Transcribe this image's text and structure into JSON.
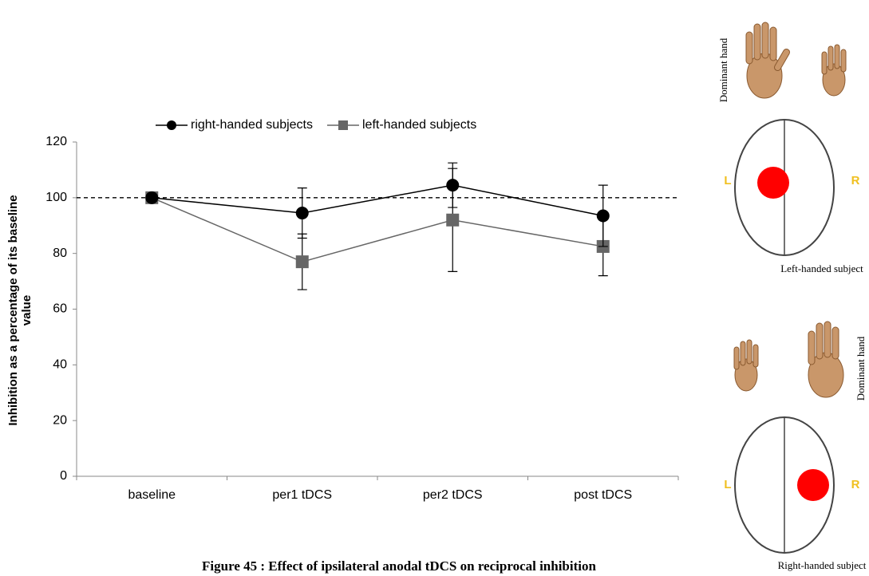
{
  "chart_data": {
    "type": "line",
    "categories": [
      "baseline",
      "per1 tDCS",
      "per2 tDCS",
      "post tDCS"
    ],
    "series": [
      {
        "name": "right-handed subjects",
        "color": "#000000",
        "marker": "circle",
        "values": [
          100,
          94.5,
          104.5,
          93.5
        ],
        "errors": [
          0,
          9,
          8,
          11
        ]
      },
      {
        "name": "left-handed subjects",
        "color": "#666666",
        "marker": "square",
        "values": [
          100,
          77,
          92,
          82.5
        ],
        "errors": [
          0,
          10,
          18.5,
          10.5
        ]
      }
    ],
    "ylim": [
      0,
      120
    ],
    "yticks": [
      0,
      20,
      40,
      60,
      80,
      100,
      120
    ],
    "ylabel": "Inhibition as  a percentage of its baseline value",
    "refline": 100,
    "legend": "top"
  },
  "caption": "Figure 45 : Effect of ipsilateral anodal tDCS on reciprocal inhibition",
  "illustrations": [
    {
      "hand_label": "Dominant hand",
      "left": "L",
      "right": "R",
      "subject": "Left-handed subject"
    },
    {
      "hand_label": "Dominant hand",
      "left": "L",
      "right": "R",
      "subject": "Right-handed subject"
    }
  ]
}
